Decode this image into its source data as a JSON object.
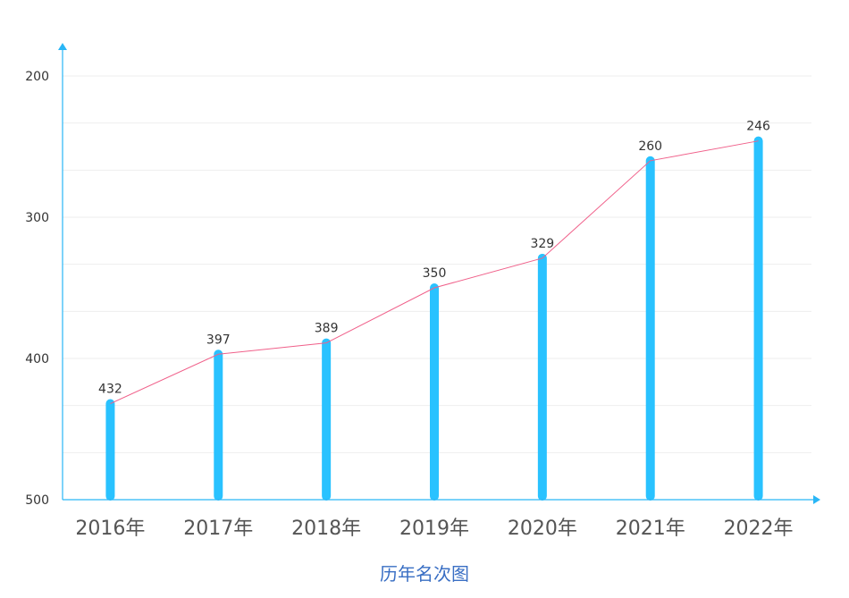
{
  "chart_data": {
    "type": "bar",
    "title": "",
    "xlabel": "",
    "ylabel": "",
    "caption": "历年名次图",
    "categories": [
      "2016年",
      "2017年",
      "2018年",
      "2019年",
      "2020年",
      "2021年",
      "2022年"
    ],
    "values": [
      432,
      397,
      389,
      350,
      329,
      260,
      246
    ],
    "data_labels": [
      "432",
      "397",
      "389",
      "350",
      "329",
      "260",
      "246"
    ],
    "y_ticks": [
      "200",
      "300",
      "400",
      "500"
    ],
    "ylim": [
      200,
      500
    ],
    "y_inverted": true,
    "overlay_line": true,
    "grid": true,
    "colors": {
      "bar": "#29c2ff",
      "line": "#f0608a",
      "axis": "#29b6f6",
      "grid": "#eeeeee",
      "tick_text": "#333333",
      "category_text": "#555555",
      "caption": "#3a6fc4"
    }
  }
}
